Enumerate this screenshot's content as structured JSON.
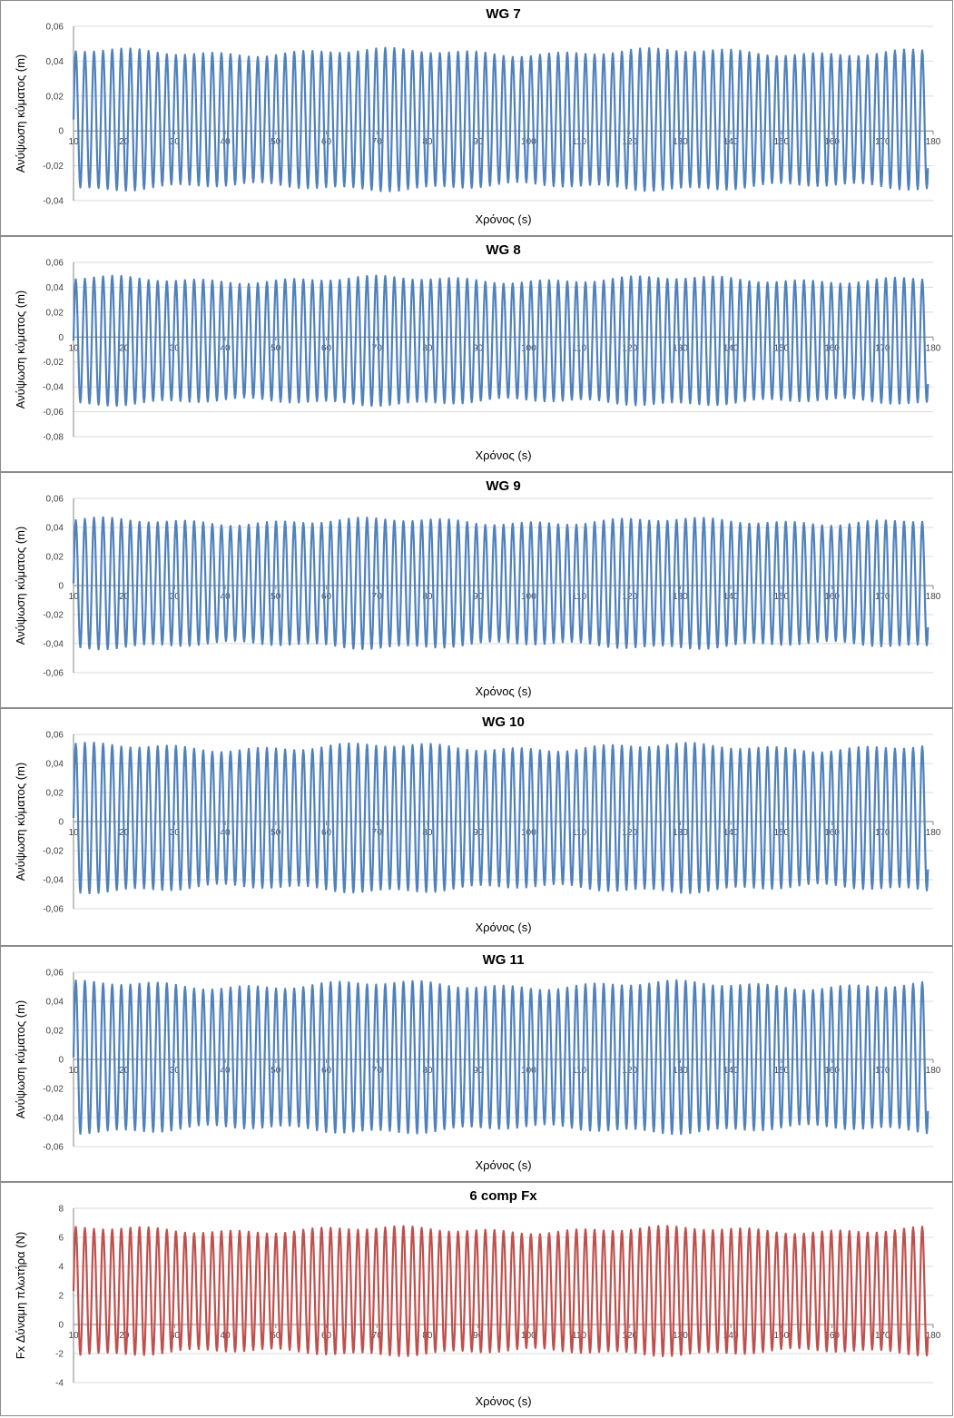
{
  "chart_data": [
    {
      "type": "line",
      "title": "WG 7",
      "xlabel": "Χρόνος (s)",
      "ylabel": "Ανύψωση κύματος (m)",
      "xlim": [
        10,
        180
      ],
      "ylim": [
        -0.04,
        0.06
      ],
      "yticks": [
        -0.04,
        -0.02,
        0,
        0.02,
        0.04,
        0.06
      ],
      "ytick_labels": [
        "-0,04",
        "-0,02",
        "0",
        "0,02",
        "0,04",
        "0,06"
      ],
      "xticks": [
        10,
        20,
        30,
        40,
        50,
        60,
        70,
        80,
        90,
        100,
        110,
        120,
        130,
        140,
        150,
        160,
        170,
        180
      ],
      "grid": true,
      "legend": "none",
      "series": [
        {
          "color": "#4f81bd",
          "waveform": "periodic",
          "period_s": 1.8,
          "x_start": 10,
          "x_end": 179,
          "crest": 0.045,
          "trough": -0.032
        }
      ]
    },
    {
      "type": "line",
      "title": "WG 8",
      "xlabel": "Χρόνος (s)",
      "ylabel": "Ανύψωση κύματος (m)",
      "xlim": [
        10,
        180
      ],
      "ylim": [
        -0.08,
        0.06
      ],
      "yticks": [
        -0.08,
        -0.06,
        -0.04,
        -0.02,
        0,
        0.02,
        0.04,
        0.06
      ],
      "ytick_labels": [
        "-0,08",
        "-0,06",
        "-0,04",
        "-0,02",
        "0",
        "0,02",
        "0,04",
        "0,06"
      ],
      "xticks": [
        10,
        20,
        30,
        40,
        50,
        60,
        70,
        80,
        90,
        100,
        110,
        120,
        130,
        140,
        150,
        160,
        170,
        180
      ],
      "grid": true,
      "legend": "none",
      "series": [
        {
          "color": "#4f81bd",
          "waveform": "periodic",
          "period_s": 1.8,
          "x_start": 10,
          "x_end": 179,
          "crest": 0.046,
          "trough": -0.052
        }
      ]
    },
    {
      "type": "line",
      "title": "WG 9",
      "xlabel": "Χρόνος (s)",
      "ylabel": "Ανύψωση κύματος (m)",
      "xlim": [
        10,
        180
      ],
      "ylim": [
        -0.06,
        0.06
      ],
      "yticks": [
        -0.06,
        -0.04,
        -0.02,
        0,
        0.02,
        0.04,
        0.06
      ],
      "ytick_labels": [
        "-0,06",
        "-0,04",
        "-0,02",
        "0",
        "0,02",
        "0,04",
        "0,06"
      ],
      "xticks": [
        10,
        20,
        30,
        40,
        50,
        60,
        70,
        80,
        90,
        100,
        110,
        120,
        130,
        140,
        150,
        160,
        170,
        180
      ],
      "grid": true,
      "legend": "none",
      "series": [
        {
          "color": "#4f81bd",
          "waveform": "periodic",
          "period_s": 1.8,
          "x_start": 10,
          "x_end": 179,
          "crest": 0.044,
          "trough": -0.041
        }
      ]
    },
    {
      "type": "line",
      "title": "WG 10",
      "xlabel": "Χρόνος (s)",
      "ylabel": "Ανύψωση κύματος (m)",
      "xlim": [
        10,
        180
      ],
      "ylim": [
        -0.06,
        0.06
      ],
      "yticks": [
        -0.06,
        -0.04,
        -0.02,
        0,
        0.02,
        0.04,
        0.06
      ],
      "ytick_labels": [
        "-0,06",
        "-0,04",
        "-0,02",
        "0",
        "0,02",
        "0,04",
        "0,06"
      ],
      "xticks": [
        10,
        20,
        30,
        40,
        50,
        60,
        70,
        80,
        90,
        100,
        110,
        120,
        130,
        140,
        150,
        160,
        170,
        180
      ],
      "grid": true,
      "legend": "none",
      "series": [
        {
          "color": "#4f81bd",
          "waveform": "periodic",
          "period_s": 1.8,
          "x_start": 10,
          "x_end": 179,
          "crest": 0.051,
          "trough": -0.046
        }
      ]
    },
    {
      "type": "line",
      "title": "WG 11",
      "xlabel": "Χρόνος (s)",
      "ylabel": "Ανύψωση κύματος (m)",
      "xlim": [
        10,
        180
      ],
      "ylim": [
        -0.06,
        0.06
      ],
      "yticks": [
        -0.06,
        -0.04,
        -0.02,
        0,
        0.02,
        0.04,
        0.06
      ],
      "ytick_labels": [
        "-0,06",
        "-0,04",
        "-0,02",
        "0",
        "0,02",
        "0,04",
        "0,06"
      ],
      "xticks": [
        10,
        20,
        30,
        40,
        50,
        60,
        70,
        80,
        90,
        100,
        110,
        120,
        130,
        140,
        150,
        160,
        170,
        180
      ],
      "grid": true,
      "legend": "none",
      "series": [
        {
          "color": "#4f81bd",
          "waveform": "periodic",
          "period_s": 1.8,
          "x_start": 10,
          "x_end": 179,
          "crest": 0.051,
          "trough": -0.048
        }
      ]
    },
    {
      "type": "line",
      "title": "6 comp Fx",
      "xlabel": "Χρόνος (s)",
      "ylabel": "Fx Δύναμη πλωτήρα (N)",
      "xlim": [
        10,
        180
      ],
      "ylim": [
        -4,
        8
      ],
      "yticks": [
        -4,
        -2,
        0,
        2,
        4,
        6,
        8
      ],
      "ytick_labels": [
        "-4",
        "-2",
        "0",
        "2",
        "4",
        "6",
        "8"
      ],
      "xticks": [
        10,
        20,
        30,
        40,
        50,
        60,
        70,
        80,
        90,
        100,
        110,
        120,
        130,
        140,
        150,
        160,
        170,
        180
      ],
      "grid": true,
      "legend": "none",
      "series": [
        {
          "color": "#c0504d",
          "waveform": "periodic",
          "period_s": 1.8,
          "x_start": 10,
          "x_end": 179,
          "crest": 6.5,
          "trough": -1.9
        }
      ]
    }
  ]
}
